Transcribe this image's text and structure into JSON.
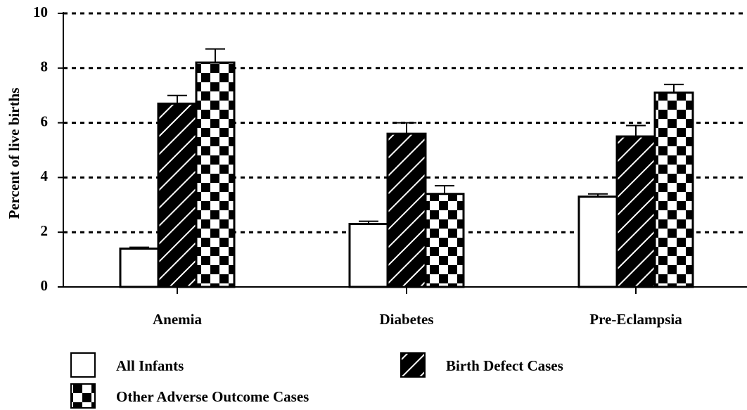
{
  "chart_data": {
    "type": "bar",
    "y_label": "Percent of live births",
    "categories": [
      "Anemia",
      "Diabetes",
      "Pre-Eclampsia"
    ],
    "series": [
      {
        "name": "All Infants",
        "color": "#ffffff",
        "pattern": "solid",
        "values": [
          1.4,
          2.3,
          3.3
        ],
        "errors": [
          0.05,
          0.1,
          0.1
        ]
      },
      {
        "name": "Birth Defect Cases",
        "color": "#000000",
        "pattern": "hatch",
        "values": [
          6.7,
          5.6,
          5.5
        ],
        "errors": [
          0.3,
          0.4,
          0.4
        ]
      },
      {
        "name": "Other Adverse Outcome Cases",
        "color": "#000000",
        "pattern": "checker",
        "values": [
          8.2,
          3.4,
          7.1
        ],
        "errors": [
          0.5,
          0.3,
          0.3
        ]
      }
    ],
    "ylim": [
      0,
      10
    ],
    "yticks": [
      0,
      2,
      4,
      6,
      8,
      10
    ],
    "grid": true
  }
}
